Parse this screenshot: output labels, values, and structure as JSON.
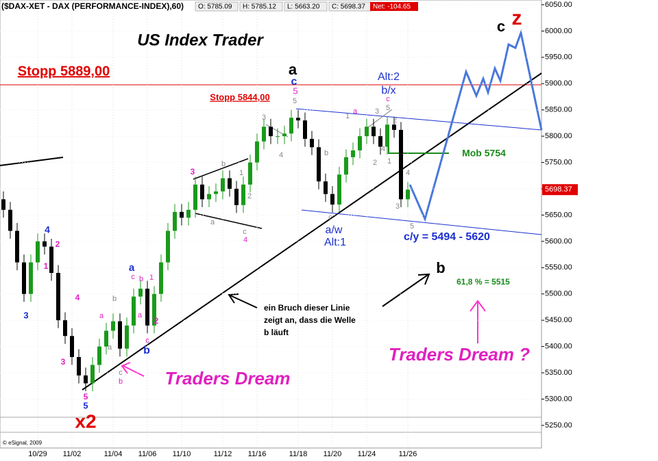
{
  "chart_data": {
    "type": "candlestick",
    "title": "($DAX-XET - DAX (PERFORMANCE-INDEX),60)",
    "quote": [
      "O: 5785.09",
      "H: 5785.12",
      "L: 5663.20",
      "C: 5698.37"
    ],
    "net": "Net: -104.65",
    "source": "© eSignal, 2009",
    "last_price_label": "5698.37",
    "categories": [
      null,
      null,
      null,
      null,
      null,
      "10/29",
      null,
      null,
      null,
      null,
      "11/02",
      null,
      null,
      null,
      null,
      null,
      "11/04",
      null,
      null,
      null,
      null,
      "11/06",
      null,
      null,
      null,
      null,
      "11/10",
      null,
      null,
      null,
      null,
      null,
      "11/12",
      null,
      null,
      null,
      null,
      "11/16",
      null,
      null,
      null,
      null,
      null,
      "11/18",
      null,
      null,
      null,
      null,
      "11/20",
      null,
      null,
      null,
      null,
      "11/24",
      null,
      null,
      null,
      null,
      null,
      "11/26"
    ],
    "open": [
      5680,
      5660,
      5620,
      5560,
      5500,
      5560,
      5600,
      5590,
      5540,
      5450,
      5420,
      5380,
      5345,
      5330,
      5365,
      5400,
      5430,
      5448,
      5396,
      5440,
      5495,
      5510,
      5440,
      5500,
      5560,
      5620,
      5656,
      5645,
      5660,
      5708,
      5680,
      5690,
      5695,
      5720,
      5700,
      5669,
      5708,
      5750,
      5790,
      5818,
      5800,
      5800,
      5805,
      5835,
      5830,
      5795,
      5779,
      5714,
      5690,
      5670,
      5727,
      5760,
      5773,
      5800,
      5818,
      5800,
      5780,
      5822,
      5812,
      5680
    ],
    "high": [
      5695,
      5675,
      5635,
      5575,
      5575,
      5615,
      5615,
      5605,
      5555,
      5465,
      5435,
      5395,
      5360,
      5380,
      5415,
      5445,
      5463,
      5463,
      5455,
      5510,
      5525,
      5525,
      5515,
      5575,
      5635,
      5671,
      5671,
      5675,
      5723,
      5723,
      5705,
      5710,
      5735,
      5735,
      5715,
      5723,
      5765,
      5805,
      5833,
      5833,
      5815,
      5820,
      5850,
      5850,
      5845,
      5810,
      5794,
      5729,
      5705,
      5742,
      5775,
      5788,
      5815,
      5833,
      5833,
      5815,
      5837,
      5837,
      5827,
      5713
    ],
    "low": [
      5645,
      5605,
      5545,
      5485,
      5485,
      5545,
      5575,
      5525,
      5435,
      5405,
      5365,
      5330,
      5315,
      5315,
      5350,
      5385,
      5415,
      5381,
      5381,
      5425,
      5480,
      5425,
      5425,
      5485,
      5545,
      5605,
      5630,
      5630,
      5645,
      5665,
      5665,
      5675,
      5680,
      5685,
      5654,
      5654,
      5693,
      5735,
      5775,
      5785,
      5785,
      5785,
      5790,
      5815,
      5780,
      5764,
      5699,
      5675,
      5655,
      5655,
      5712,
      5745,
      5758,
      5785,
      5785,
      5765,
      5765,
      5797,
      5665,
      5665
    ],
    "close": [
      5660,
      5620,
      5560,
      5500,
      5560,
      5600,
      5590,
      5540,
      5450,
      5420,
      5380,
      5345,
      5330,
      5365,
      5400,
      5430,
      5448,
      5396,
      5440,
      5495,
      5510,
      5440,
      5500,
      5560,
      5620,
      5656,
      5645,
      5660,
      5708,
      5680,
      5690,
      5695,
      5720,
      5700,
      5669,
      5708,
      5750,
      5790,
      5818,
      5800,
      5800,
      5805,
      5835,
      5830,
      5795,
      5779,
      5714,
      5690,
      5670,
      5727,
      5760,
      5773,
      5800,
      5818,
      5800,
      5780,
      5822,
      5812,
      5680,
      5698.37
    ],
    "up_color": "#1a9a1a",
    "down_color": "#000000",
    "ylim": [
      5207,
      6059
    ],
    "yticks": [
      {
        "value": 5250,
        "label": "5250.00"
      },
      {
        "value": 5300,
        "label": "5300.00"
      },
      {
        "value": 5350,
        "label": "5350.00"
      },
      {
        "value": 5400,
        "label": "5400.00"
      },
      {
        "value": 5450,
        "label": "5450.00"
      },
      {
        "value": 5500,
        "label": "5500.00"
      },
      {
        "value": 5550,
        "label": "5550.00"
      },
      {
        "value": 5600,
        "label": "5600.00"
      },
      {
        "value": 5650,
        "label": "5650.00"
      },
      {
        "value": 5700,
        "label": "5700.00"
      },
      {
        "value": 5750,
        "label": "5750.00"
      },
      {
        "value": 5800,
        "label": "5800.00"
      },
      {
        "value": 5850,
        "label": "5850.00"
      },
      {
        "value": 5900,
        "label": "5900.00"
      },
      {
        "value": 5950,
        "label": "5950.00"
      },
      {
        "value": 6000,
        "label": "6000.00"
      },
      {
        "value": 6050,
        "label": "6050.00"
      }
    ],
    "grid": true,
    "annotations": [
      "US Index Trader",
      "Stopp 5889,00",
      "Stopp 5844,00",
      "a",
      "c",
      "5",
      "5",
      "Alt:2",
      "b/x",
      "c",
      "5",
      "c",
      "z",
      "Mob 5754",
      "a/w",
      "Alt:1",
      "c/y = 5494 - 5620",
      "b",
      "61,8 % = 5515",
      "ein Bruch dieser Linie",
      "zeigt an, dass die Welle",
      "b läuft",
      "Traders Dream ?",
      "Traders Dream",
      "x2",
      "4",
      "2",
      "1",
      "3",
      "4",
      "3",
      "5",
      "5",
      "a",
      "c",
      "b",
      "1",
      "b",
      "a",
      "a",
      "2",
      "a",
      "c",
      "b",
      "c",
      "b",
      "3",
      "b",
      "1",
      "2",
      "a",
      "c",
      "4",
      "3",
      "4",
      "a",
      "b",
      "c",
      "1",
      "3",
      "2",
      "4",
      "1",
      "2",
      "4",
      "3",
      "5"
    ]
  }
}
